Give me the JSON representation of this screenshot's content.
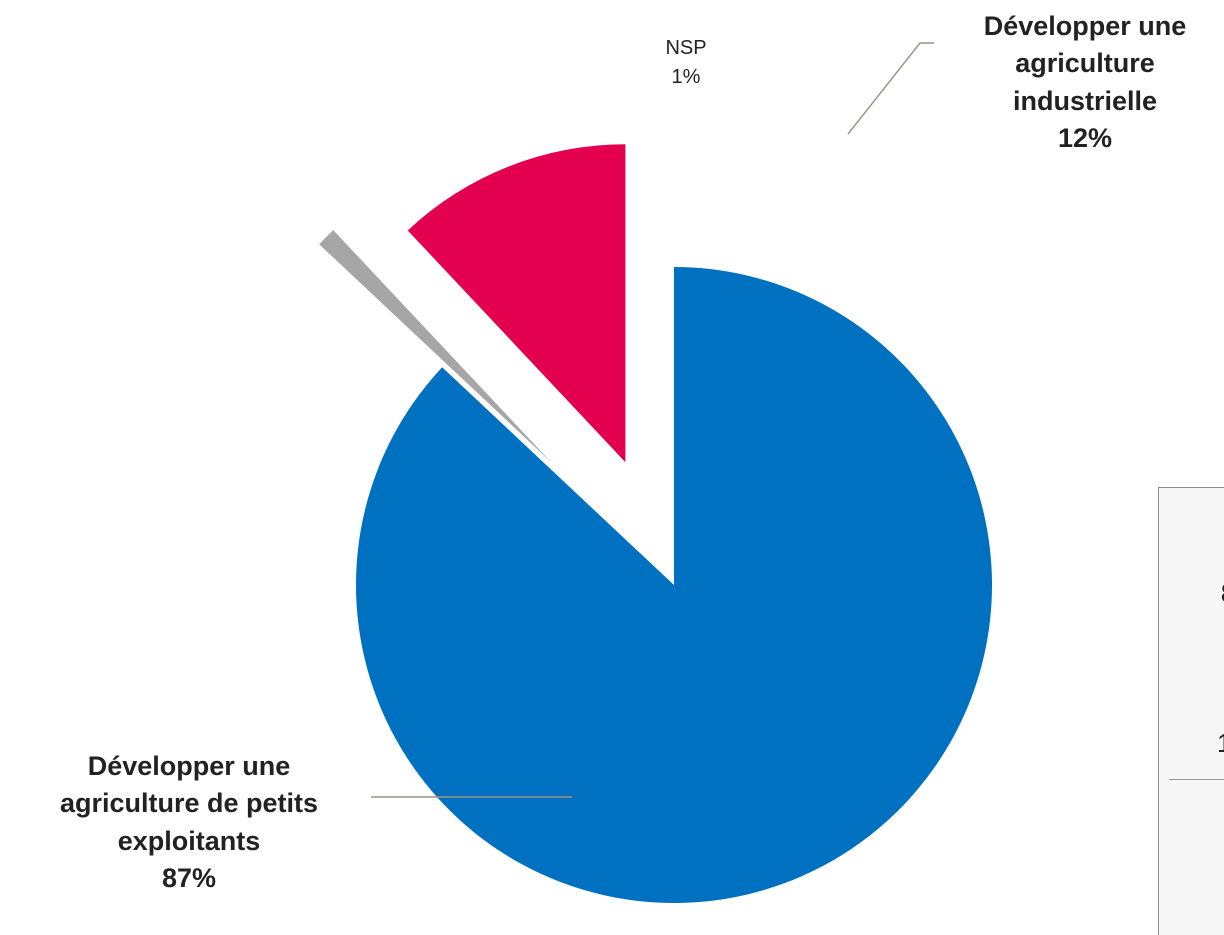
{
  "chart_data": {
    "type": "pie",
    "title": "",
    "slices": [
      {
        "label_lines": [
          "Développer une",
          "agriculture",
          "industrielle"
        ],
        "value_text": "12%",
        "value": 12,
        "color": "#e3004f",
        "exploded": true
      },
      {
        "label_lines": [
          "Développer une",
          "agriculture de petits",
          "exploitants"
        ],
        "value_text": "87%",
        "value": 87,
        "color": "#0070c0",
        "exploded": false
      },
      {
        "label_lines": [
          "NSP"
        ],
        "value_text": "1%",
        "value": 1,
        "color": "#a6a6a6",
        "exploded": true
      }
    ],
    "legend": "none",
    "leader_line_color": "#9c9484"
  },
  "side_panel": {
    "values": [
      "8",
      "1"
    ]
  }
}
